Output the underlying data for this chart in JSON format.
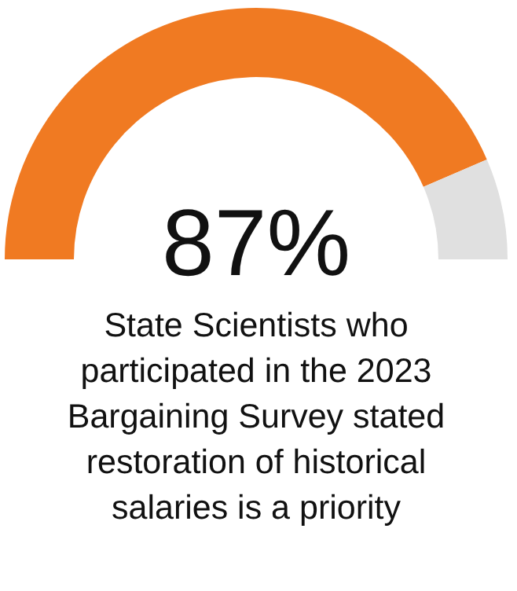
{
  "chart_data": {
    "type": "donut",
    "title": "State Scientists who participated in the 2023 Bargaining Survey stated restoration of historical salaries is a priority",
    "categories": [
      null,
      null
    ],
    "values": [
      87,
      13
    ],
    "colors": [
      "#f07a22",
      "#e0e0e0"
    ],
    "value_labels": [
      "87%",
      null
    ]
  }
}
